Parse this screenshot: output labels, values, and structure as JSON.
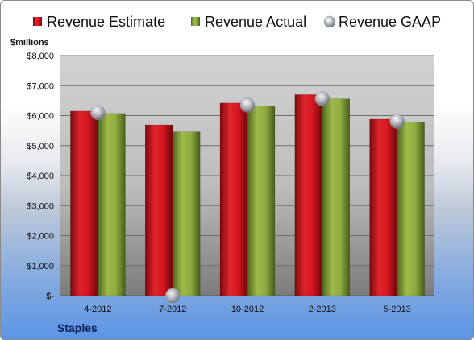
{
  "chart_data": {
    "type": "bar",
    "ylabel": "$millions",
    "company": "Staples",
    "categories": [
      "4-2012",
      "7-2012",
      "10-2012",
      "2-2013",
      "5-2013"
    ],
    "ylim": [
      0,
      8000
    ],
    "yticks": [
      0,
      1000,
      2000,
      3000,
      4000,
      5000,
      6000,
      7000,
      8000
    ],
    "ytick_labels": [
      "$-",
      "$1,000",
      "$2,000",
      "$3,000",
      "$4,000",
      "$5,000",
      "$6,000",
      "$7,000",
      "$8,000"
    ],
    "grid": true,
    "legend_position": "top",
    "series": [
      {
        "name": "Revenue Estimate",
        "type": "bar",
        "color": "#c0141c",
        "values": [
          6150,
          5690,
          6420,
          6700,
          5880
        ]
      },
      {
        "name": "Revenue Actual",
        "type": "bar",
        "color": "#8aa83c",
        "values": [
          6070,
          5460,
          6330,
          6560,
          5790
        ]
      },
      {
        "name": "Revenue GAAP",
        "type": "marker",
        "color": "#b8bcc6",
        "values": [
          6100,
          0,
          6350,
          6560,
          5810
        ]
      }
    ]
  }
}
